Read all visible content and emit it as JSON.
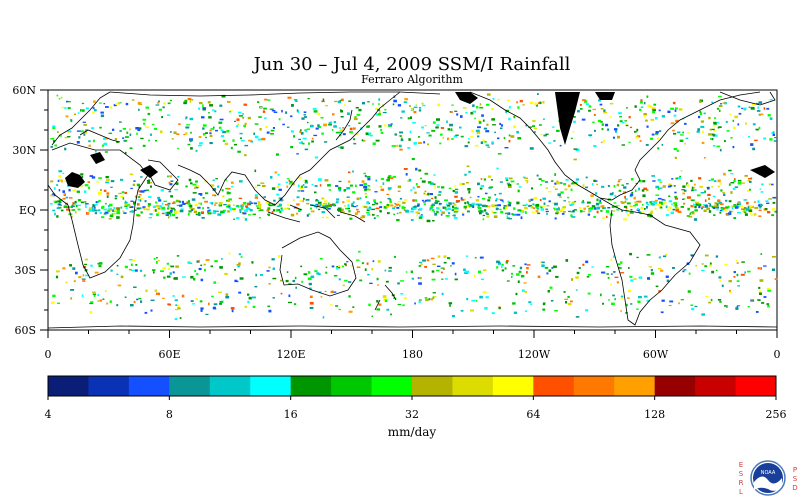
{
  "title": "Jun 30 – Jul 4, 2009 SSM/I Rainfall",
  "subtitle": "Ferraro Algorithm",
  "map": {
    "lat_labels": [
      "60N",
      "30N",
      "EQ",
      "30S",
      "60S"
    ],
    "lon_labels": [
      "0",
      "60E",
      "120E",
      "180",
      "120W",
      "60W",
      "0"
    ]
  },
  "colorbar": {
    "colors": [
      "#0a1e78",
      "#0a32b4",
      "#1450ff",
      "#0a9696",
      "#00c8c8",
      "#00ffff",
      "#009600",
      "#00c800",
      "#00ff00",
      "#b4b400",
      "#dcdc00",
      "#ffff00",
      "#ff5000",
      "#ff7800",
      "#ffa000",
      "#960000",
      "#c80000",
      "#ff0000"
    ],
    "tick_labels": [
      "4",
      "8",
      "16",
      "32",
      "64",
      "128",
      "256"
    ],
    "units": "mm/day"
  },
  "logo": {
    "left_text": "ESRL",
    "right_text": "PSD",
    "center_text": "NOAA"
  },
  "land_color": "#000000"
}
